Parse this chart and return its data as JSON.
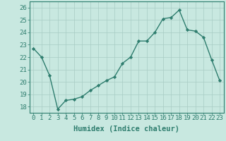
{
  "title": "",
  "xlabel": "Humidex (Indice chaleur)",
  "ylabel": "",
  "x": [
    0,
    1,
    2,
    3,
    4,
    5,
    6,
    7,
    8,
    9,
    10,
    11,
    12,
    13,
    14,
    15,
    16,
    17,
    18,
    19,
    20,
    21,
    22,
    23
  ],
  "y": [
    22.7,
    22.0,
    20.5,
    17.8,
    18.5,
    18.6,
    18.8,
    19.3,
    19.7,
    20.1,
    20.4,
    21.5,
    22.0,
    23.3,
    23.3,
    24.0,
    25.1,
    25.2,
    25.8,
    24.2,
    24.1,
    23.6,
    21.8,
    20.1
  ],
  "line_color": "#2e7d6e",
  "marker": "D",
  "marker_size": 2.2,
  "bg_color": "#c8e8e0",
  "grid_color": "#a8ccc4",
  "ylim": [
    17.5,
    26.5
  ],
  "yticks": [
    18,
    19,
    20,
    21,
    22,
    23,
    24,
    25,
    26
  ],
  "xlim": [
    -0.5,
    23.5
  ],
  "tick_fontsize": 6.5,
  "label_fontsize": 7.5,
  "line_width": 1.0
}
